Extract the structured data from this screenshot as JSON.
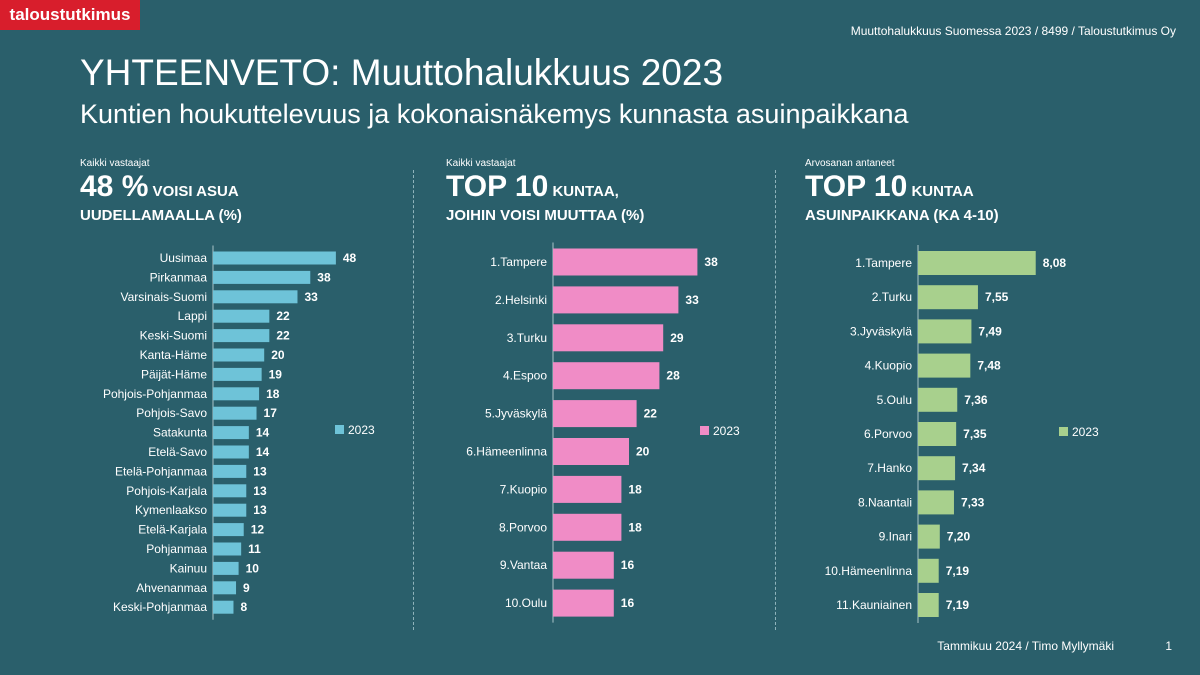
{
  "header": {
    "logo": "taloustutkimus",
    "source": "Muuttohalukkuus Suomessa 2023 / 8499 / Taloustutkimus Oy",
    "title": "YHTEENVETO: Muuttohalukkuus 2023",
    "subtitle": "Kuntien houkuttelevuus ja kokonaisnäkemys kunnasta asuinpaikkana"
  },
  "panels": [
    {
      "note": "Kaikki vastaajat",
      "big": "48 %",
      "small": " VOISI ASUA",
      "line2": "UUDELLAMAALLA (%)"
    },
    {
      "note": "Kaikki vastaajat",
      "big": "TOP 10",
      "small": " KUNTAA,",
      "line2": "JOIHIN VOISI MUUTTAA (%)"
    },
    {
      "note": "Arvosanan antaneet",
      "big": "TOP 10",
      "small": " KUNTAA",
      "line2": "ASUINPAIKKANA (KA 4-10)"
    }
  ],
  "footer": {
    "text": "Tammikuu 2024 / Timo Myllymäki",
    "page": "1"
  },
  "chart_data": [
    {
      "type": "bar",
      "orientation": "horizontal",
      "categories": [
        "Uusimaa",
        "Pirkanmaa",
        "Varsinais-Suomi",
        "Lappi",
        "Keski-Suomi",
        "Kanta-Häme",
        "Päijät-Häme",
        "Pohjois-Pohjanmaa",
        "Pohjois-Savo",
        "Satakunta",
        "Etelä-Savo",
        "Etelä-Pohjanmaa",
        "Pohjois-Karjala",
        "Kymenlaakso",
        "Etelä-Karjala",
        "Pohjanmaa",
        "Kainuu",
        "Ahvenanmaa",
        "Keski-Pohjanmaa"
      ],
      "series": [
        {
          "name": "2023",
          "values": [
            48,
            38,
            33,
            22,
            22,
            20,
            19,
            18,
            17,
            14,
            14,
            13,
            13,
            13,
            12,
            11,
            10,
            9,
            8
          ]
        }
      ],
      "value_labels": [
        "48",
        "38",
        "33",
        "22",
        "22",
        "20",
        "19",
        "18",
        "17",
        "14",
        "14",
        "13",
        "13",
        "13",
        "12",
        "11",
        "10",
        "9",
        "8"
      ],
      "color": "#6ec3d8",
      "legend": "right"
    },
    {
      "type": "bar",
      "orientation": "horizontal",
      "categories": [
        "1.Tampere",
        "2.Helsinki",
        "3.Turku",
        "4.Espoo",
        "5.Jyväskylä",
        "6.Hämeenlinna",
        "7.Kuopio",
        "8.Porvoo",
        "9.Vantaa",
        "10.Oulu"
      ],
      "series": [
        {
          "name": "2023",
          "values": [
            38,
            33,
            29,
            28,
            22,
            20,
            18,
            18,
            16,
            16
          ]
        }
      ],
      "value_labels": [
        "38",
        "33",
        "29",
        "28",
        "22",
        "20",
        "18",
        "18",
        "16",
        "16"
      ],
      "color": "#f08cc6",
      "legend": "right"
    },
    {
      "type": "bar",
      "orientation": "horizontal",
      "categories": [
        "1.Tampere",
        "2.Turku",
        "3.Jyväskylä",
        "4.Kuopio",
        "5.Oulu",
        "6.Porvoo",
        "7.Hanko",
        "8.Naantali",
        "9.Inari",
        "10.Hämeenlinna",
        "11.Kauniainen"
      ],
      "series": [
        {
          "name": "2023",
          "values": [
            8.08,
            7.55,
            7.49,
            7.48,
            7.36,
            7.35,
            7.34,
            7.33,
            7.2,
            7.19,
            7.19
          ]
        }
      ],
      "value_labels": [
        "8,08",
        "7,55",
        "7,49",
        "7,48",
        "7,36",
        "7,35",
        "7,34",
        "7,33",
        "7,20",
        "7,19",
        "7,19"
      ],
      "color": "#a8d08d",
      "legend": "right"
    }
  ]
}
